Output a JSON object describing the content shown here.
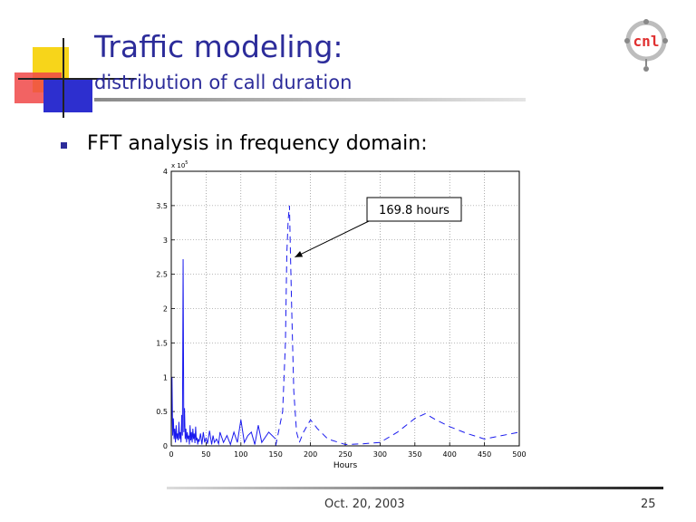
{
  "slide": {
    "title": "Traffic modeling:",
    "subtitle": "distribution of call duration",
    "bullet": "FFT analysis in frequency domain:",
    "footer_date": "Oct. 20, 2003",
    "page_number": "25",
    "logo_text": "cnl",
    "title_color": "#2c2c9a"
  },
  "chart_data": {
    "type": "line",
    "xlabel": "Hours",
    "ylabel": "",
    "xlim": [
      0,
      500
    ],
    "ylim": [
      0,
      4
    ],
    "y_exponent_label": "x 10",
    "y_exponent_power": "5",
    "x_ticks": [
      "0",
      "50",
      "100",
      "150",
      "200",
      "250",
      "300",
      "350",
      "400",
      "450",
      "500"
    ],
    "y_ticks": [
      "0",
      "0.5",
      "1",
      "1.5",
      "2",
      "2.5",
      "3",
      "3.5",
      "4"
    ],
    "grid": true,
    "annotation": {
      "text": "169.8 hours",
      "x": 169.8,
      "y": 2.75
    },
    "series": [
      {
        "style": "solid",
        "color": "#1a1aee",
        "x": [
          0,
          1,
          2,
          3,
          4,
          5,
          6,
          7,
          8,
          9,
          10,
          11,
          12,
          13,
          14,
          15,
          16,
          17,
          18,
          19,
          20,
          21,
          22,
          23,
          24,
          25,
          26,
          27,
          28,
          29,
          30,
          31,
          32,
          33,
          34,
          35,
          36,
          37,
          38,
          39,
          40,
          42,
          44,
          46,
          48,
          50,
          52,
          55,
          58,
          60,
          62,
          65,
          68,
          70,
          75,
          80,
          85,
          90,
          95,
          100,
          105,
          110,
          115,
          120,
          125,
          130,
          140,
          150
        ],
        "y": [
          0.2,
          1.0,
          0.15,
          0.4,
          0.1,
          0.25,
          0.05,
          0.3,
          0.1,
          0.18,
          0.08,
          0.35,
          0.1,
          0.2,
          0.05,
          0.45,
          0.15,
          2.72,
          0.2,
          0.55,
          0.1,
          0.25,
          0.05,
          0.2,
          0.1,
          0.15,
          0.02,
          0.3,
          0.08,
          0.2,
          0.05,
          0.25,
          0.1,
          0.18,
          0.04,
          0.28,
          0.08,
          0.12,
          0.02,
          0.1,
          0.06,
          0.18,
          0.02,
          0.2,
          0.05,
          0.12,
          0.03,
          0.22,
          0.02,
          0.15,
          0.05,
          0.1,
          0.03,
          0.2,
          0.05,
          0.15,
          0.02,
          0.2,
          0.05,
          0.38,
          0.05,
          0.15,
          0.2,
          0.02,
          0.3,
          0.05,
          0.2,
          0.1
        ]
      },
      {
        "style": "dashed",
        "color": "#1a1aee",
        "x": [
          150,
          160,
          164,
          166,
          168,
          169.8,
          171,
          173,
          176,
          180,
          184,
          190,
          200,
          210,
          225,
          250,
          275,
          300,
          325,
          350,
          365,
          380,
          400,
          425,
          450,
          475,
          500
        ],
        "y": [
          0.0,
          0.5,
          1.5,
          2.8,
          3.3,
          3.5,
          2.9,
          2.0,
          0.8,
          0.2,
          0.05,
          0.2,
          0.38,
          0.25,
          0.1,
          0.02,
          0.03,
          0.05,
          0.2,
          0.4,
          0.47,
          0.38,
          0.28,
          0.18,
          0.1,
          0.15,
          0.2
        ]
      }
    ]
  }
}
